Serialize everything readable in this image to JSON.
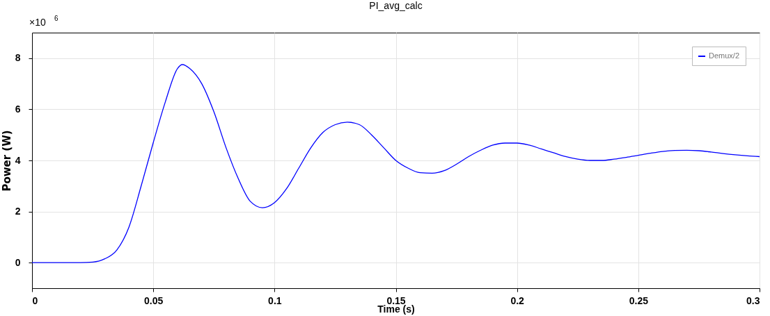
{
  "chart_data": {
    "type": "line",
    "title": "PI_avg_calc",
    "xlabel": "Time (s)",
    "ylabel": "Power (W)",
    "annotations": [
      "×10$^{6}$"
    ],
    "x": [
      0,
      0.01,
      0.02,
      0.025,
      0.03,
      0.035,
      0.04,
      0.045,
      0.05,
      0.055,
      0.06,
      0.062,
      0.065,
      0.07,
      0.075,
      0.08,
      0.085,
      0.09,
      0.095,
      0.1,
      0.105,
      0.11,
      0.115,
      0.12,
      0.125,
      0.13,
      0.135,
      0.14,
      0.145,
      0.15,
      0.155,
      0.16,
      0.165,
      0.17,
      0.175,
      0.18,
      0.185,
      0.19,
      0.195,
      0.2,
      0.205,
      0.21,
      0.215,
      0.22,
      0.225,
      0.23,
      0.235,
      0.24,
      0.245,
      0.25,
      0.255,
      0.26,
      0.265,
      0.27,
      0.275,
      0.28,
      0.285,
      0.29,
      0.295,
      0.3
    ],
    "series": [
      {
        "name": "Demux/2",
        "color": "#0000ff",
        "values": [
          0,
          0,
          0,
          0.02,
          0.15,
          0.5,
          1.4,
          3.0,
          4.7,
          6.3,
          7.6,
          7.75,
          7.6,
          7.0,
          5.9,
          4.5,
          3.3,
          2.4,
          2.15,
          2.35,
          2.9,
          3.7,
          4.5,
          5.1,
          5.4,
          5.5,
          5.4,
          5.0,
          4.5,
          4.0,
          3.7,
          3.52,
          3.5,
          3.6,
          3.85,
          4.15,
          4.4,
          4.6,
          4.68,
          4.68,
          4.6,
          4.45,
          4.3,
          4.15,
          4.05,
          4.0,
          4.0,
          4.05,
          4.12,
          4.2,
          4.28,
          4.35,
          4.39,
          4.4,
          4.38,
          4.33,
          4.27,
          4.22,
          4.18,
          4.15
        ]
      }
    ],
    "xlim": [
      0,
      0.3
    ],
    "xticks": [
      0,
      0.05,
      0.1,
      0.15,
      0.2,
      0.25,
      0.3
    ],
    "ylim": [
      -1,
      9
    ],
    "yticks": [
      0,
      2,
      4,
      6,
      8
    ],
    "grid": true,
    "legend": "top right",
    "marker": "none",
    "line_style": "solid"
  }
}
